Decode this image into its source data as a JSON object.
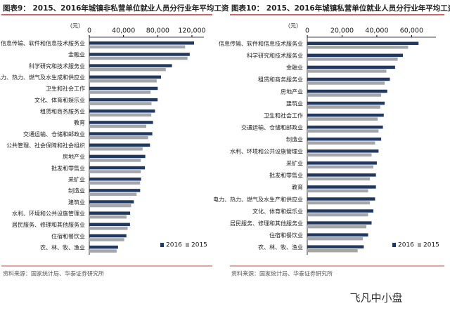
{
  "chart_data": [
    {
      "type": "bar",
      "orientation": "horizontal",
      "title": "图表9：  2015、2016年城镇非私营单位就业人员分行业年平均工资",
      "unit_label": "（元）",
      "categories": [
        "信息传输、软件和信息技术服务业",
        "金融业",
        "科学研究和技术服务业",
        "电力、热力、燃气及水生成和供应业",
        "卫生和社会工作",
        "文化、体育和娱乐业",
        "租赁和商务服务业",
        "教育",
        "交通运输、仓储和邮政业",
        "公共管理、社会保障和社会组织",
        "房地产业",
        "批发和零售业",
        "采矿业",
        "制造业",
        "建筑业",
        "水利、环境和公共设施管理业",
        "居民服务、修理和其他服务业",
        "住宿和餐饮业",
        "农、林、牧、渔业"
      ],
      "series": [
        {
          "name": "2016",
          "color": "#1f3864",
          "values": [
            122478,
            117418,
            96638,
            83863,
            80026,
            79875,
            76782,
            74498,
            73650,
            70959,
            65497,
            65061,
            60544,
            59470,
            52082,
            47750,
            47577,
            43382,
            33612
          ]
        },
        {
          "name": "2015",
          "color": "#a6a6a6",
          "values": [
            112042,
            114777,
            89410,
            78886,
            71624,
            72764,
            72489,
            66592,
            68822,
            62323,
            60244,
            60328,
            59404,
            55324,
            48886,
            43528,
            44802,
            40806,
            31947
          ]
        }
      ],
      "xlim": [
        0,
        134000
      ],
      "xticks": [
        0,
        {
          "value": 40000,
          "label": "40,000"
        },
        {
          "value": 80000,
          "label": "80,000"
        },
        {
          "value": 120000,
          "label": "120,000"
        }
      ],
      "legend": "lower right",
      "source": "资料来源：国家统计局、华泰证券研究所"
    },
    {
      "type": "bar",
      "orientation": "horizontal",
      "title": "图表10：  2015、2016年城镇私营单位就业人员分行业年平均工资",
      "unit_label": "（元）",
      "categories": [
        "信息传输、软件和信息技术服务业",
        "科学研究和技术服务业",
        "金融业",
        "租赁和商务服务业",
        "房地产业",
        "建筑业",
        "卫生和社会工作",
        "交通运输、仓储和邮政业",
        "制造业",
        "水利、环境和公共设施管理业",
        "采矿业",
        "批发和零售业",
        "教育",
        "电力、热力、燃气及水生产和供应业",
        "文化、体育和娱乐业",
        "居民服务、修理和其他服务业",
        "住宿和餐饮业",
        "农、林、牧、渔业"
      ],
      "series": [
        {
          "name": "2016",
          "color": "#1f3864",
          "values": [
            64000,
            55000,
            50500,
            47500,
            46000,
            44500,
            44000,
            43500,
            42500,
            41000,
            40000,
            39500,
            39500,
            39000,
            38000,
            37000,
            35000,
            32500
          ]
        },
        {
          "name": "2015",
          "color": "#a6a6a6",
          "values": [
            58000,
            52000,
            45500,
            44500,
            42500,
            42000,
            40500,
            41000,
            39000,
            37000,
            38000,
            36000,
            35000,
            36000,
            35000,
            34000,
            32000,
            29000
          ]
        }
      ],
      "xlim": [
        0,
        74000
      ],
      "xticks": [
        0,
        {
          "value": 20000,
          "label": "20,000"
        },
        {
          "value": 40000,
          "label": "40,000"
        },
        {
          "value": 60000,
          "label": "60,000"
        }
      ],
      "legend": "lower right",
      "source": "资料来源：国家统计局、华泰证券研究所"
    }
  ],
  "watermark": "飞凡中小盘"
}
